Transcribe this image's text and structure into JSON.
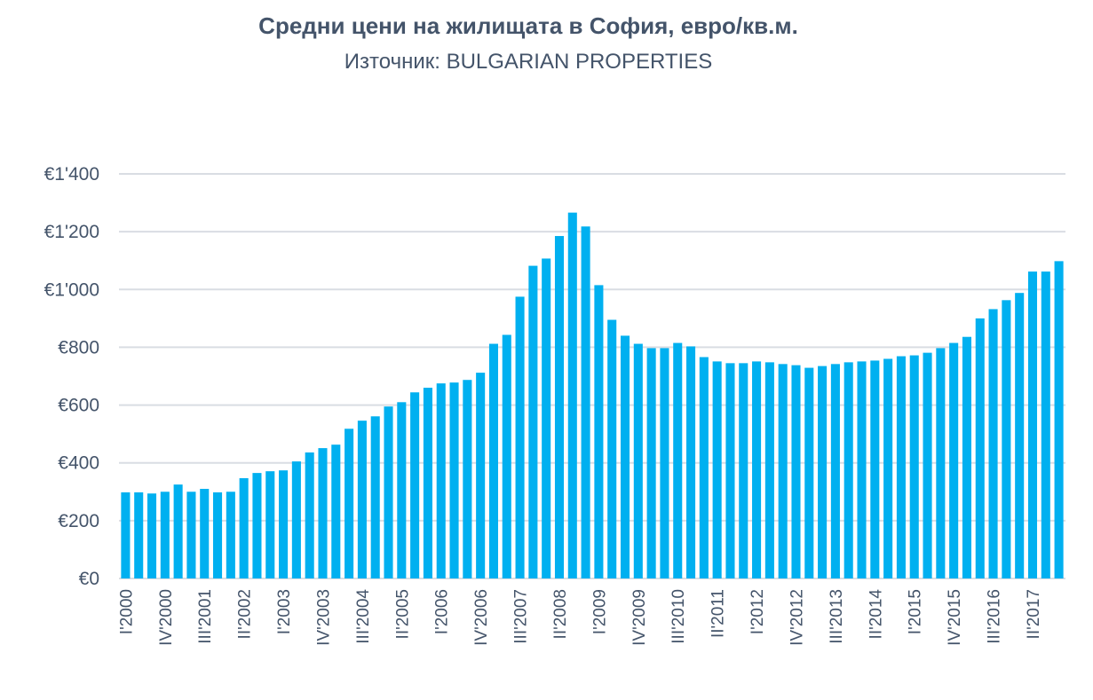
{
  "chart_data": {
    "type": "bar",
    "title": "Средни цени на жилищата в София, евро/кв.м.",
    "subtitle": "Източник: BULGARIAN PROPERTIES",
    "xlabel": "",
    "ylabel": "",
    "ylim": [
      0,
      1400
    ],
    "yticks": [
      "€0",
      "€200",
      "€400",
      "€600",
      "€800",
      "€1'000",
      "€1'200",
      "€1'400"
    ],
    "ytick_values": [
      0,
      200,
      400,
      600,
      800,
      1000,
      1200,
      1400
    ],
    "grid": true,
    "bar_color": "#00b0f0",
    "x_labels_every": 3,
    "categories": [
      "I'2000",
      "II'2000",
      "III'2000",
      "IV'2000",
      "I'2001",
      "II'2001",
      "III'2001",
      "IV'2001",
      "I'2002",
      "II'2002",
      "III'2002",
      "IV'2002",
      "I'2003",
      "II'2003",
      "III'2003",
      "IV'2003",
      "I'2004",
      "II'2004",
      "III'2004",
      "IV'2004",
      "I'2005",
      "II'2005",
      "III'2005",
      "IV'2005",
      "I'2006",
      "II'2006",
      "III'2006",
      "IV'2006",
      "I'2007",
      "II'2007",
      "III'2007",
      "IV'2007",
      "I'2008",
      "II'2008",
      "III'2008",
      "IV'2008",
      "I'2009",
      "II'2009",
      "III'2009",
      "IV'2009",
      "I'2010",
      "II'2010",
      "III'2010",
      "IV'2010",
      "I'2011",
      "II'2011",
      "III'2011",
      "IV'2011",
      "I'2012",
      "II'2012",
      "III'2012",
      "IV'2012",
      "I'2013",
      "II'2013",
      "III'2013",
      "IV'2013",
      "I'2014",
      "II'2014",
      "III'2014",
      "IV'2014",
      "I'2015",
      "II'2015",
      "III'2015",
      "IV'2015",
      "I'2016",
      "II'2016",
      "III'2016",
      "IV'2016",
      "I'2017",
      "II'2017",
      "III'2017",
      "IV'2017"
    ],
    "values": [
      298,
      298,
      294,
      300,
      325,
      300,
      310,
      298,
      300,
      347,
      365,
      371,
      374,
      405,
      436,
      451,
      463,
      518,
      546,
      561,
      595,
      610,
      644,
      660,
      675,
      678,
      687,
      712,
      812,
      843,
      975,
      1082,
      1107,
      1185,
      1266,
      1218,
      1015,
      895,
      840,
      812,
      797,
      797,
      815,
      803,
      766,
      751,
      745,
      745,
      751,
      748,
      742,
      738,
      729,
      735,
      742,
      748,
      751,
      754,
      760,
      769,
      772,
      781,
      797,
      815,
      836,
      900,
      932,
      963,
      988,
      1062,
      1062,
      1098
    ]
  }
}
